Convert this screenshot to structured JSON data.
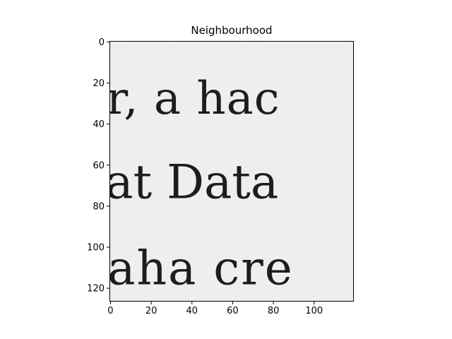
{
  "chart_data": {
    "type": "heatmap",
    "title": "Neighbourhood",
    "colormap": "gray",
    "image_width": 120,
    "image_height": 127,
    "xlim": [
      -0.5,
      119.5
    ],
    "ylim": [
      126.5,
      -0.5
    ],
    "x_ticks": [
      0,
      20,
      40,
      60,
      80,
      100
    ],
    "y_ticks": [
      0,
      20,
      40,
      60,
      80,
      100,
      120
    ],
    "xlabel": "",
    "ylabel": "",
    "image_content": {
      "description": "grayscale scan of printed serif text",
      "lines": [
        {
          "text": "r, a hac",
          "baseline_row": 35
        },
        {
          "text": "at Data",
          "baseline_row": 76
        },
        {
          "text": "aha cre",
          "baseline_row": 118
        }
      ]
    },
    "colors": {
      "background": "#f1f1f1",
      "ink": "#1d1d1d",
      "axes": "#000000"
    }
  }
}
